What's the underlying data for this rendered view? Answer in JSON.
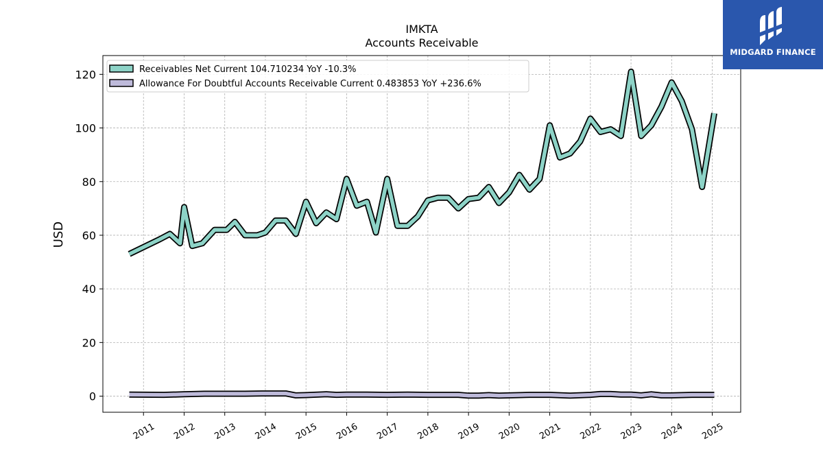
{
  "chart_data": {
    "type": "line",
    "title": "IMKTA",
    "subtitle": "Accounts Receivable",
    "ylabel": "USD",
    "xlabel": "",
    "ylim": [
      -6,
      127
    ],
    "xlim": [
      2010.0,
      2025.7
    ],
    "yticks": [
      0,
      20,
      40,
      60,
      80,
      100,
      120
    ],
    "xticks": [
      "2011",
      "2012",
      "2013",
      "2014",
      "2015",
      "2016",
      "2017",
      "2018",
      "2019",
      "2020",
      "2021",
      "2022",
      "2023",
      "2024",
      "2025"
    ],
    "grid": true,
    "legend_position": "top-left",
    "series": [
      {
        "name": "Receivables Net Current  104.710234 YoY -10.3%",
        "color": "#8dd3c7",
        "x": [
          2010.65,
          2011.4,
          2011.65,
          2011.9,
          2012.0,
          2012.2,
          2012.45,
          2012.75,
          2013.05,
          2013.25,
          2013.5,
          2013.8,
          2014.0,
          2014.25,
          2014.5,
          2014.75,
          2015.0,
          2015.25,
          2015.5,
          2015.75,
          2016.0,
          2016.25,
          2016.5,
          2016.72,
          2017.0,
          2017.25,
          2017.5,
          2017.75,
          2018.0,
          2018.25,
          2018.5,
          2018.75,
          2019.0,
          2019.25,
          2019.5,
          2019.75,
          2020.0,
          2020.25,
          2020.5,
          2020.75,
          2021.0,
          2021.25,
          2021.5,
          2021.75,
          2022.0,
          2022.25,
          2022.5,
          2022.75,
          2023.0,
          2023.25,
          2023.5,
          2023.75,
          2024.0,
          2024.25,
          2024.5,
          2024.75,
          2025.05
        ],
        "values": [
          53,
          58.5,
          60.5,
          57,
          70.5,
          56,
          57,
          62,
          62,
          65,
          60,
          60,
          61,
          65.5,
          65.5,
          60.5,
          72.5,
          64.5,
          68.5,
          66,
          81,
          71,
          72.5,
          61,
          81,
          63.5,
          63.5,
          67,
          73,
          74,
          74,
          70,
          73.5,
          74,
          78,
          72,
          76,
          82.5,
          77,
          81,
          101,
          89,
          90.5,
          95,
          103.5,
          98.5,
          99.5,
          97,
          121,
          97,
          101,
          108,
          117,
          110,
          99.5,
          78,
          105.5
        ]
      },
      {
        "name": "Allowance For Doubtful Accounts Receivable Current  0.483853 YoY +236.6%",
        "color": "#bebada",
        "x": [
          2010.65,
          2011.5,
          2012.0,
          2012.5,
          2013.0,
          2013.5,
          2014.0,
          2014.5,
          2014.75,
          2015.0,
          2015.5,
          2015.75,
          2016.0,
          2016.5,
          2017.0,
          2017.5,
          2018.0,
          2018.5,
          2018.75,
          2019.0,
          2019.25,
          2019.5,
          2019.75,
          2020.0,
          2020.5,
          2021.0,
          2021.5,
          2022.0,
          2022.25,
          2022.5,
          2022.75,
          2023.0,
          2023.25,
          2023.5,
          2023.75,
          2024.0,
          2024.5,
          2025.05
        ],
        "values": [
          0.6,
          0.5,
          0.7,
          0.9,
          0.9,
          0.9,
          1.0,
          1.0,
          0.3,
          0.4,
          0.7,
          0.5,
          0.6,
          0.6,
          0.5,
          0.6,
          0.5,
          0.5,
          0.5,
          0.2,
          0.2,
          0.4,
          0.2,
          0.3,
          0.5,
          0.5,
          0.2,
          0.5,
          0.8,
          0.8,
          0.6,
          0.6,
          0.3,
          0.7,
          0.3,
          0.3,
          0.5,
          0.5
        ]
      }
    ]
  },
  "logo": {
    "text": "MIDGARD FINANCE"
  }
}
